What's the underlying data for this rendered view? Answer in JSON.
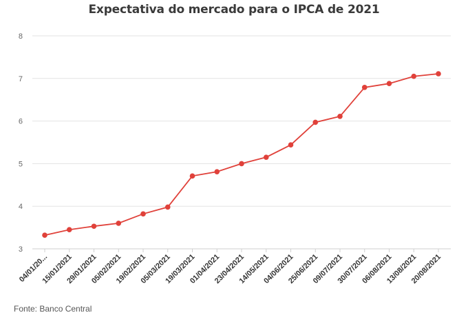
{
  "header": {
    "title": "Expectativa do mercado para o IPCA de 2021"
  },
  "footer": {
    "source": "Fonte: Banco Central"
  },
  "colors": {
    "series": "#e0413a",
    "grid": "#e3e3e3"
  },
  "chart_data": {
    "type": "line",
    "title": "Expectativa do mercado para o IPCA de 2021",
    "xlabel": "",
    "ylabel": "",
    "ylim": [
      3,
      8
    ],
    "yticks": [
      3,
      4,
      5,
      6,
      7,
      8
    ],
    "grid": true,
    "legend": "none",
    "categories": [
      "04/01/20...",
      "15/01/2021",
      "29/01/2021",
      "05/02/2021",
      "19/02/2021",
      "05/03/2021",
      "19/03/2021",
      "01/04/2021",
      "23/04/2021",
      "14/05/2021",
      "04/06/2021",
      "25/06/2021",
      "09/07/2021",
      "30/07/2021",
      "06/08/2021",
      "13/08/2021",
      "20/08/2021"
    ],
    "series": [
      {
        "values": [
          3.32,
          3.45,
          3.53,
          3.6,
          3.82,
          3.98,
          4.71,
          4.81,
          5.0,
          5.15,
          5.44,
          5.97,
          6.11,
          6.79,
          6.88,
          7.05,
          7.11
        ]
      }
    ]
  }
}
